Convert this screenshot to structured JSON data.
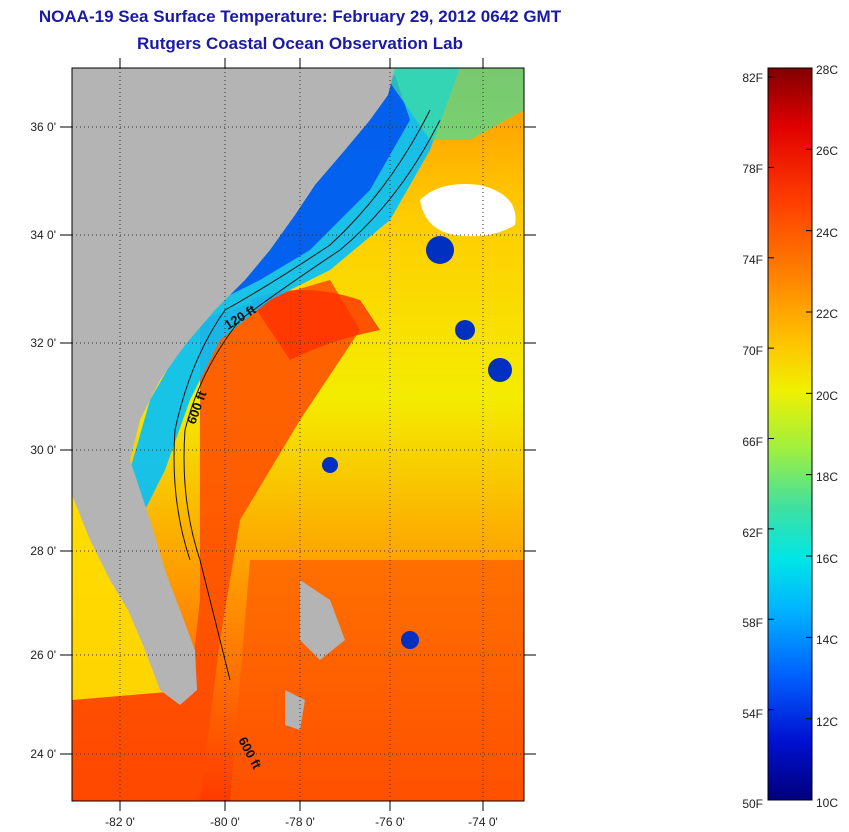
{
  "title_line1": "NOAA-19 Sea Surface Temperature:  February 29, 2012 0642 GMT",
  "title_line2": "Rutgers Coastal Ocean Observation Lab",
  "map": {
    "lat_ticks": [
      "36 0'",
      "34 0'",
      "32 0'",
      "30 0'",
      "28 0'",
      "26 0'",
      "24 0'"
    ],
    "lon_ticks": [
      "-82 0'",
      "-80 0'",
      "-78 0'",
      "-76 0'",
      "-74 0'"
    ],
    "contour_labels": [
      "120 ft",
      "600 ft",
      "600 ft"
    ],
    "colors": {
      "land": "#b4b4b4",
      "cloud": "#ffffff",
      "contour": "#111111"
    }
  },
  "colorbar": {
    "fahrenheit_labels": [
      "82F",
      "78F",
      "74F",
      "70F",
      "66F",
      "62F",
      "58F",
      "54F",
      "50F"
    ],
    "celsius_labels": [
      "28C",
      "26C",
      "24C",
      "22C",
      "20C",
      "18C",
      "16C",
      "14C",
      "12C",
      "10C"
    ],
    "range_celsius": [
      10,
      28
    ],
    "range_fahrenheit": [
      50,
      82.4
    ],
    "colors": [
      "#00007a",
      "#0010d0",
      "#0060ff",
      "#00b4ff",
      "#00e6e6",
      "#40e0a0",
      "#a0f040",
      "#f0f000",
      "#ffc000",
      "#ff8000",
      "#ff3c00",
      "#e00000",
      "#800000"
    ]
  }
}
